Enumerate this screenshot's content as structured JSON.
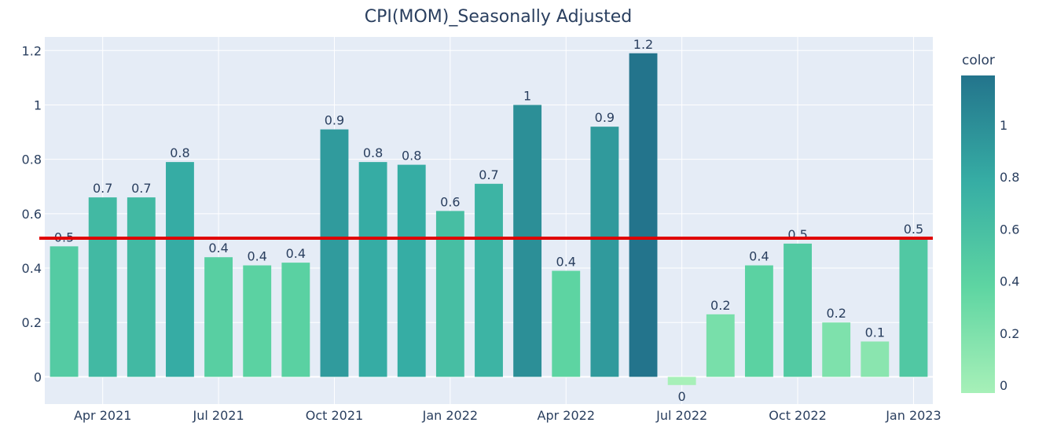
{
  "chart_data": {
    "type": "bar",
    "title": "CPI(MOM)_Seasonally Adjusted",
    "xlabel": "",
    "ylabel": "",
    "x": [
      "2021-02",
      "2021-03",
      "2021-04",
      "2021-05",
      "2021-06",
      "2021-07",
      "2021-08",
      "2021-09",
      "2021-10",
      "2021-11",
      "2021-12",
      "2022-01",
      "2022-02",
      "2022-03",
      "2022-04",
      "2022-05",
      "2022-06",
      "2022-07",
      "2022-08",
      "2022-09",
      "2022-10",
      "2022-11",
      "2022-12"
    ],
    "values": [
      0.48,
      0.66,
      0.66,
      0.79,
      0.44,
      0.41,
      0.42,
      0.91,
      0.79,
      0.78,
      0.61,
      0.71,
      1.0,
      0.39,
      0.92,
      1.19,
      -0.03,
      0.23,
      0.41,
      0.49,
      0.2,
      0.13,
      0.51
    ],
    "data_labels": [
      "0.5",
      "0.7",
      "0.7",
      "0.8",
      "0.4",
      "0.4",
      "0.4",
      "0.9",
      "0.8",
      "0.8",
      "0.6",
      "0.7",
      "1",
      "0.4",
      "0.9",
      "1.2",
      "0",
      "0.2",
      "0.4",
      "0.5",
      "0.2",
      "0.1",
      "0.5"
    ],
    "x_ticks": [
      {
        "label": "Apr 2021",
        "pos": 1.5
      },
      {
        "label": "Jul 2021",
        "pos": 4.5
      },
      {
        "label": "Oct 2021",
        "pos": 7.5
      },
      {
        "label": "Jan 2022",
        "pos": 10.5
      },
      {
        "label": "Apr 2022",
        "pos": 13.5
      },
      {
        "label": "Jul 2022",
        "pos": 16.5
      },
      {
        "label": "Oct 2022",
        "pos": 19.5
      },
      {
        "label": "Jan 2023",
        "pos": 22.5
      }
    ],
    "y_ticks": [
      0,
      0.2,
      0.4,
      0.6,
      0.8,
      1,
      1.2
    ],
    "y_tick_labels": [
      "0",
      "0.2",
      "0.4",
      "0.6",
      "0.8",
      "1",
      "1.2"
    ],
    "ylim": [
      -0.1,
      1.25
    ],
    "reference_line": {
      "value": 0.51,
      "color": "#e00000"
    },
    "grid": true,
    "colorscale": [
      "#a7f0b8",
      "#5ed5a2",
      "#36ada4",
      "#23748c"
    ],
    "colorbar": {
      "title": "color",
      "range": [
        -0.03,
        1.19
      ],
      "ticks": [
        0,
        0.2,
        0.4,
        0.6,
        0.8,
        1
      ],
      "tick_labels": [
        "0",
        "0.2",
        "0.4",
        "0.6",
        "0.8",
        "1"
      ]
    },
    "plot_bg": "#e5ecf6",
    "grid_color": "#ffffff",
    "text_color": "#2a3f5f"
  }
}
